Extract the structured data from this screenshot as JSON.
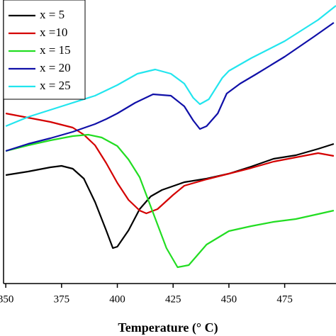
{
  "chart_data": {
    "type": "line",
    "x_label": "Temperature (° C)",
    "xlim": [
      349,
      498
    ],
    "ylim": [
      0,
      400
    ],
    "xticks": [
      350,
      375,
      400,
      425,
      450,
      475
    ],
    "legend": "upper left",
    "series": [
      {
        "name": "x = 5",
        "color": "#000000",
        "x": [
          350,
          360,
          370,
          375,
          380,
          385,
          390,
          395,
          398,
          400,
          405,
          410,
          415,
          420,
          430,
          440,
          450,
          460,
          470,
          480,
          490,
          497
        ],
        "values": [
          153,
          158,
          164,
          166,
          162,
          148,
          115,
          75,
          50,
          52,
          75,
          105,
          123,
          132,
          143,
          148,
          155,
          165,
          176,
          181,
          190,
          197
        ]
      },
      {
        "name": "x =10",
        "color": "#d40000",
        "x": [
          350,
          360,
          370,
          380,
          385,
          390,
          395,
          400,
          405,
          410,
          413,
          418,
          425,
          430,
          440,
          450,
          460,
          470,
          480,
          490,
          497
        ],
        "values": [
          240,
          234,
          228,
          220,
          210,
          195,
          170,
          142,
          118,
          103,
          99,
          105,
          125,
          138,
          147,
          155,
          163,
          172,
          178,
          184,
          180
        ]
      },
      {
        "name": "x = 15",
        "color": "#22dd22",
        "x": [
          350,
          360,
          370,
          380,
          387,
          393,
          400,
          405,
          410,
          416,
          422,
          427,
          432,
          440,
          450,
          460,
          470,
          480,
          490,
          497
        ],
        "values": [
          187,
          195,
          202,
          208,
          210,
          206,
          194,
          175,
          150,
          100,
          50,
          23,
          26,
          55,
          74,
          81,
          87,
          91,
          98,
          103
        ]
      },
      {
        "name": "x = 20",
        "color": "#1010a8",
        "x": [
          350,
          360,
          370,
          380,
          390,
          395,
          400,
          408,
          416,
          424,
          430,
          434,
          437,
          440,
          445,
          449,
          455,
          462,
          475,
          488,
          497
        ],
        "values": [
          187,
          197,
          205,
          214,
          225,
          232,
          240,
          255,
          267,
          265,
          250,
          230,
          218,
          222,
          240,
          268,
          282,
          295,
          320,
          348,
          368
        ]
      },
      {
        "name": "x = 25",
        "color": "#22e5ee",
        "x": [
          350,
          360,
          375,
          390,
          400,
          409,
          417,
          424,
          430,
          434,
          437,
          441,
          447,
          450,
          460,
          475,
          490,
          498
        ],
        "values": [
          222,
          235,
          250,
          265,
          280,
          296,
          302,
          296,
          282,
          262,
          253,
          260,
          290,
          300,
          318,
          342,
          372,
          392
        ]
      }
    ]
  }
}
